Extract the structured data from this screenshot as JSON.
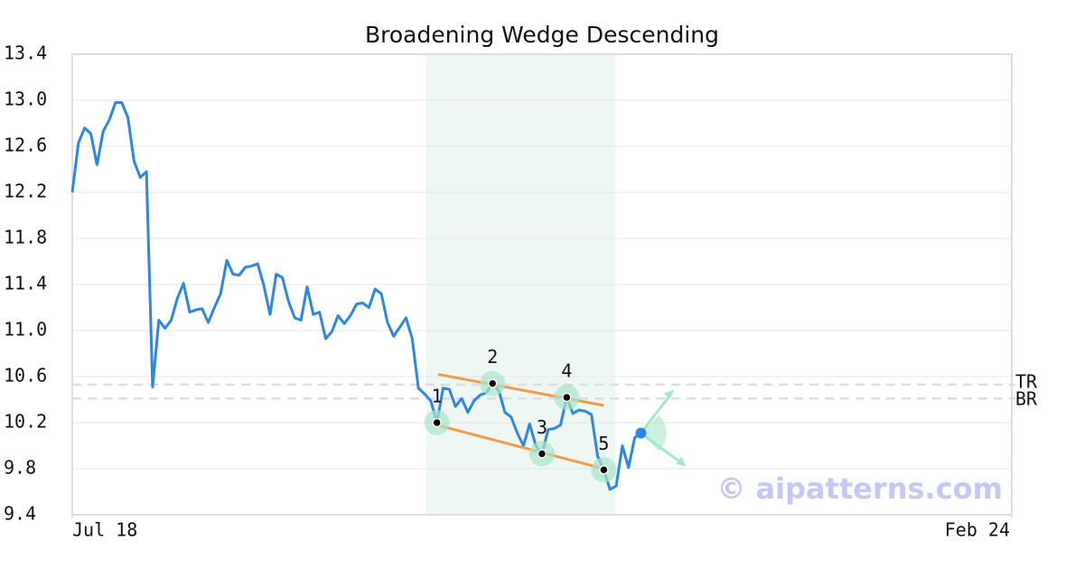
{
  "chart_data": {
    "type": "line",
    "title": "Broadening Wedge Descending",
    "xlim": [
      0,
      152
    ],
    "xticks": [
      {
        "value": 0,
        "label": "Jul 18"
      },
      {
        "value": 152,
        "label": "Feb 24"
      }
    ],
    "ylim": [
      9.4,
      13.4
    ],
    "yticks": [
      9.4,
      9.8,
      10.2,
      10.6,
      {
        "value": 11.0,
        "label": "11.0"
      },
      11.4,
      11.8,
      12.2,
      12.6,
      {
        "value": 13.0,
        "label": "13.0"
      },
      13.4
    ],
    "grid": true,
    "series": [
      {
        "color": "#2e86de",
        "values": [
          12.2,
          12.63,
          12.76,
          12.71,
          12.44,
          12.73,
          12.83,
          12.98,
          12.98,
          12.85,
          12.47,
          12.33,
          12.38,
          10.51,
          11.09,
          11.02,
          11.09,
          11.28,
          11.41,
          11.16,
          11.18,
          11.19,
          11.07,
          11.2,
          11.32,
          11.61,
          11.49,
          11.48,
          11.55,
          11.56,
          11.58,
          11.39,
          11.14,
          11.49,
          11.46,
          11.25,
          11.11,
          11.09,
          11.38,
          11.14,
          11.16,
          10.93,
          10.99,
          11.13,
          11.06,
          11.13,
          11.23,
          11.24,
          11.2,
          11.36,
          11.32,
          11.07,
          10.95,
          11.03,
          11.11,
          10.93,
          10.5,
          10.45,
          10.39,
          10.2,
          10.5,
          10.49,
          10.34,
          10.41,
          10.29,
          10.39,
          10.44,
          10.46,
          10.54,
          10.48,
          10.29,
          10.25,
          10.11,
          10.0,
          10.19,
          10.0,
          9.93,
          10.14,
          10.15,
          10.18,
          10.42,
          10.28,
          10.31,
          10.3,
          10.27,
          9.91,
          9.79,
          9.62,
          9.65,
          10.0,
          9.81,
          10.07,
          10.11
        ]
      }
    ],
    "highlight": {
      "x": [
        57.2,
        87.9
      ],
      "color": "#eef7f3"
    },
    "pattern_points": {
      "labels": [
        "1",
        "2",
        "3",
        "4",
        "5"
      ],
      "x": [
        59,
        68,
        76,
        80,
        86
      ],
      "y": [
        10.2,
        10.54,
        9.93,
        10.42,
        9.79
      ]
    },
    "trend_lines": [
      {
        "x": [
          59.2,
          86
        ],
        "y": [
          10.62,
          10.35
        ],
        "color": "#f39c45"
      },
      {
        "x": [
          59,
          86
        ],
        "y": [
          10.18,
          9.8
        ],
        "color": "#f39c45"
      }
    ],
    "levels": [
      {
        "name": "TR",
        "y": 10.53
      },
      {
        "name": "BR",
        "y": 10.41
      }
    ],
    "watermark": "© aipatterns.com"
  }
}
